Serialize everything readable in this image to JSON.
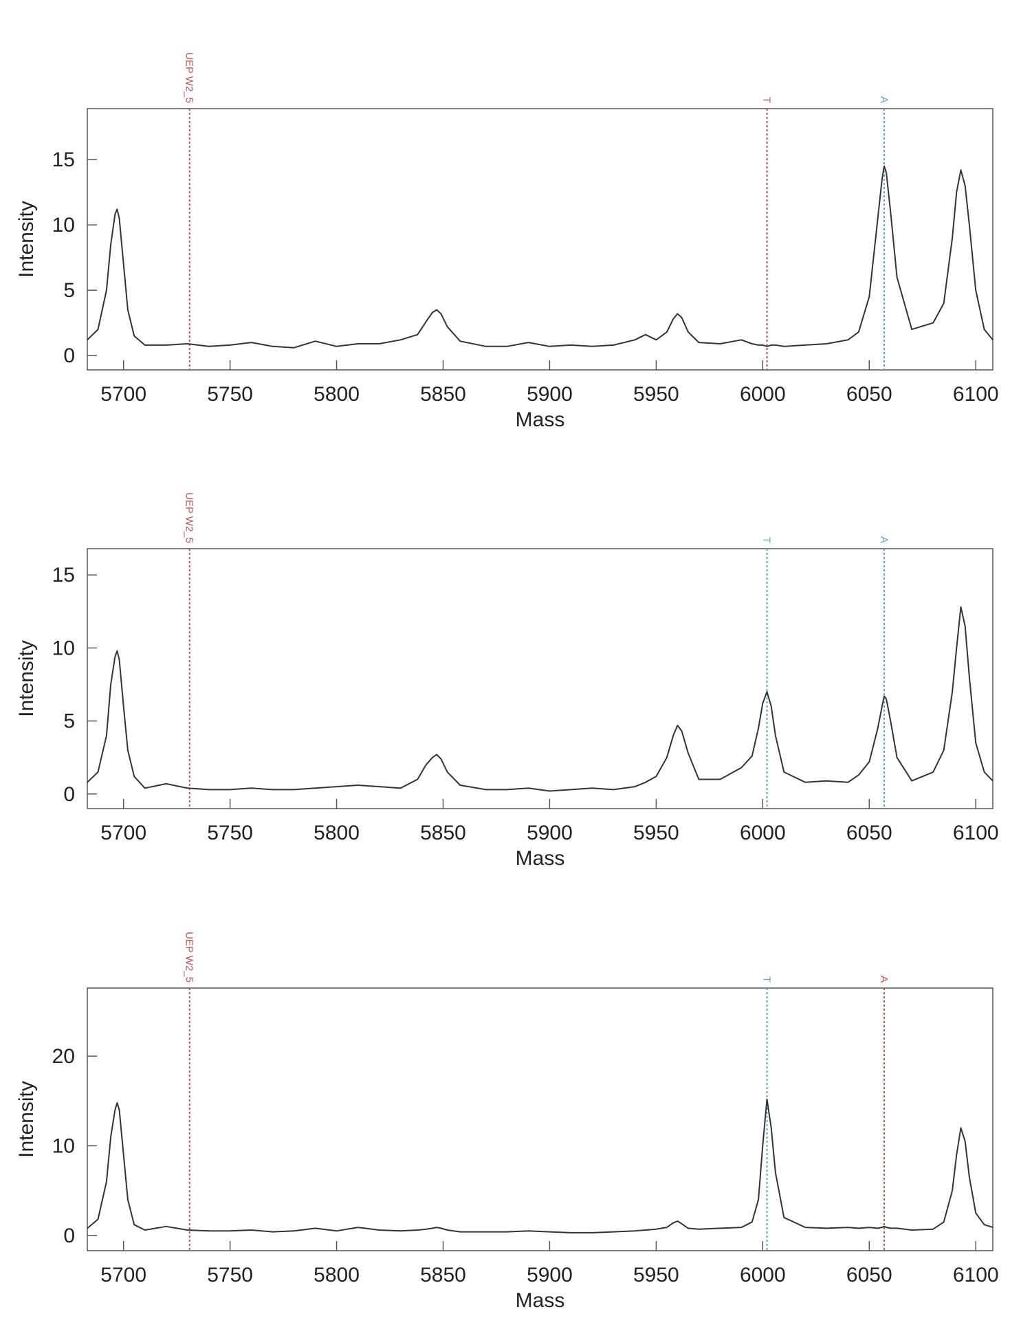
{
  "chart_data": [
    {
      "type": "line",
      "xlabel": "Mass",
      "ylabel": "Intensity",
      "x": [
        5683,
        5688,
        5692,
        5694,
        5696,
        5697,
        5698,
        5700,
        5702,
        5705,
        5710,
        5720,
        5730,
        5740,
        5750,
        5760,
        5770,
        5780,
        5790,
        5800,
        5810,
        5820,
        5830,
        5838,
        5842,
        5845,
        5847,
        5849,
        5852,
        5858,
        5870,
        5880,
        5890,
        5900,
        5910,
        5920,
        5930,
        5940,
        5945,
        5950,
        5955,
        5958,
        5960,
        5962,
        5965,
        5970,
        5980,
        5990,
        5995,
        5998,
        6000,
        6002,
        6004,
        6006,
        6010,
        6020,
        6030,
        6040,
        6045,
        6050,
        6054,
        6056,
        6057,
        6058,
        6060,
        6063,
        6070,
        6080,
        6085,
        6089,
        6091,
        6093,
        6095,
        6097,
        6100,
        6104,
        6108
      ],
      "series": [
        {
          "color": "#333333",
          "values": [
            1.2,
            2.0,
            5.0,
            8.5,
            10.8,
            11.2,
            10.5,
            7.0,
            3.5,
            1.5,
            0.8,
            0.8,
            0.9,
            0.7,
            0.8,
            1.0,
            0.7,
            0.6,
            1.1,
            0.7,
            0.9,
            0.9,
            1.2,
            1.6,
            2.6,
            3.3,
            3.5,
            3.2,
            2.2,
            1.1,
            0.7,
            0.7,
            1.0,
            0.7,
            0.8,
            0.7,
            0.8,
            1.2,
            1.6,
            1.2,
            1.8,
            2.8,
            3.2,
            2.9,
            1.8,
            1.0,
            0.9,
            1.2,
            0.9,
            0.8,
            0.8,
            0.7,
            0.8,
            0.8,
            0.7,
            0.8,
            0.9,
            1.2,
            1.8,
            4.5,
            10.5,
            13.5,
            14.5,
            14.0,
            11.0,
            6.0,
            2.0,
            2.5,
            4.0,
            9.0,
            12.5,
            14.2,
            13.0,
            10.0,
            5.0,
            2.0,
            1.2
          ]
        }
      ],
      "xlim": [
        5683,
        6108
      ],
      "ylim": [
        -1.1,
        18.9
      ],
      "xticks": [
        5700,
        5750,
        5800,
        5850,
        5900,
        5950,
        6000,
        6050,
        6100
      ],
      "yticks": [
        0,
        5,
        10,
        15
      ],
      "markers": [
        {
          "label": "UEP W2_5",
          "x": 5731,
          "color": "#c0504d"
        },
        {
          "label": "T",
          "x": 6002,
          "color": "#c0504d"
        },
        {
          "label": "A",
          "x": 6057,
          "color": "#5ba3d0"
        }
      ]
    },
    {
      "type": "line",
      "xlabel": "Mass",
      "ylabel": "Intensity",
      "x": [
        5683,
        5688,
        5692,
        5694,
        5696,
        5697,
        5698,
        5700,
        5702,
        5705,
        5710,
        5720,
        5730,
        5740,
        5750,
        5760,
        5770,
        5780,
        5790,
        5800,
        5810,
        5820,
        5830,
        5838,
        5842,
        5845,
        5847,
        5849,
        5852,
        5858,
        5870,
        5880,
        5890,
        5900,
        5910,
        5920,
        5930,
        5940,
        5945,
        5950,
        5955,
        5958,
        5960,
        5962,
        5965,
        5970,
        5980,
        5990,
        5995,
        5998,
        6000,
        6002,
        6004,
        6006,
        6010,
        6020,
        6030,
        6040,
        6045,
        6050,
        6054,
        6056,
        6057,
        6058,
        6060,
        6063,
        6070,
        6080,
        6085,
        6089,
        6091,
        6093,
        6095,
        6097,
        6100,
        6104,
        6108
      ],
      "series": [
        {
          "color": "#333333",
          "values": [
            0.8,
            1.5,
            4.0,
            7.5,
            9.4,
            9.8,
            9.2,
            6.0,
            3.0,
            1.2,
            0.4,
            0.7,
            0.4,
            0.3,
            0.3,
            0.4,
            0.3,
            0.3,
            0.4,
            0.5,
            0.6,
            0.5,
            0.4,
            1.0,
            2.0,
            2.5,
            2.7,
            2.4,
            1.5,
            0.6,
            0.3,
            0.3,
            0.4,
            0.2,
            0.3,
            0.4,
            0.3,
            0.5,
            0.8,
            1.2,
            2.5,
            4.0,
            4.7,
            4.3,
            2.8,
            1.0,
            1.0,
            1.8,
            2.6,
            4.5,
            6.2,
            7.0,
            6.0,
            4.0,
            1.5,
            0.8,
            0.9,
            0.8,
            1.3,
            2.2,
            4.5,
            6.0,
            6.7,
            6.5,
            5.0,
            2.5,
            0.9,
            1.5,
            3.0,
            7.0,
            10.0,
            12.8,
            11.5,
            8.0,
            3.5,
            1.5,
            0.9
          ]
        }
      ],
      "xlim": [
        5683,
        6108
      ],
      "ylim": [
        -1.0,
        16.8
      ],
      "xticks": [
        5700,
        5750,
        5800,
        5850,
        5900,
        5950,
        6000,
        6050,
        6100
      ],
      "yticks": [
        0,
        5,
        10,
        15
      ],
      "markers": [
        {
          "label": "UEP W2_5",
          "x": 5731,
          "color": "#c0504d"
        },
        {
          "label": "T",
          "x": 6002,
          "color": "#5ba3d0"
        },
        {
          "label": "A",
          "x": 6057,
          "color": "#5ba3d0"
        }
      ]
    },
    {
      "type": "line",
      "xlabel": "Mass",
      "ylabel": "Intensity",
      "x": [
        5683,
        5688,
        5692,
        5694,
        5696,
        5697,
        5698,
        5700,
        5702,
        5705,
        5710,
        5720,
        5730,
        5740,
        5750,
        5760,
        5770,
        5780,
        5790,
        5800,
        5810,
        5820,
        5830,
        5838,
        5842,
        5845,
        5847,
        5849,
        5852,
        5858,
        5870,
        5880,
        5890,
        5900,
        5910,
        5920,
        5930,
        5940,
        5945,
        5950,
        5955,
        5958,
        5960,
        5962,
        5965,
        5970,
        5980,
        5990,
        5995,
        5998,
        6000,
        6002,
        6004,
        6006,
        6010,
        6020,
        6030,
        6040,
        6045,
        6050,
        6054,
        6056,
        6057,
        6058,
        6060,
        6063,
        6070,
        6080,
        6085,
        6089,
        6091,
        6093,
        6095,
        6097,
        6100,
        6104,
        6108
      ],
      "series": [
        {
          "color": "#333333",
          "values": [
            0.8,
            1.8,
            6.0,
            11.0,
            14.0,
            14.8,
            14.0,
            9.0,
            4.0,
            1.2,
            0.6,
            1.0,
            0.6,
            0.5,
            0.5,
            0.6,
            0.4,
            0.5,
            0.8,
            0.5,
            0.9,
            0.6,
            0.5,
            0.6,
            0.7,
            0.8,
            0.9,
            0.8,
            0.6,
            0.4,
            0.4,
            0.4,
            0.5,
            0.4,
            0.3,
            0.3,
            0.4,
            0.5,
            0.6,
            0.7,
            0.9,
            1.4,
            1.6,
            1.3,
            0.8,
            0.7,
            0.8,
            0.9,
            1.5,
            4.0,
            10.0,
            15.2,
            12.0,
            7.0,
            2.0,
            0.9,
            0.8,
            0.9,
            0.8,
            0.9,
            0.8,
            0.9,
            1.0,
            0.9,
            0.8,
            0.8,
            0.6,
            0.7,
            1.5,
            5.0,
            9.0,
            12.0,
            10.5,
            6.5,
            2.5,
            1.2,
            0.9
          ]
        }
      ],
      "xlim": [
        5683,
        6108
      ],
      "ylim": [
        -1.7,
        27.6
      ],
      "xticks": [
        5700,
        5750,
        5800,
        5850,
        5900,
        5950,
        6000,
        6050,
        6100
      ],
      "yticks": [
        0,
        10,
        20
      ],
      "markers": [
        {
          "label": "UEP W2_5",
          "x": 5731,
          "color": "#c0504d"
        },
        {
          "label": "T",
          "x": 6002,
          "color": "#5ba3d0"
        },
        {
          "label": "A",
          "x": 6057,
          "color": "#c0504d"
        }
      ]
    }
  ]
}
